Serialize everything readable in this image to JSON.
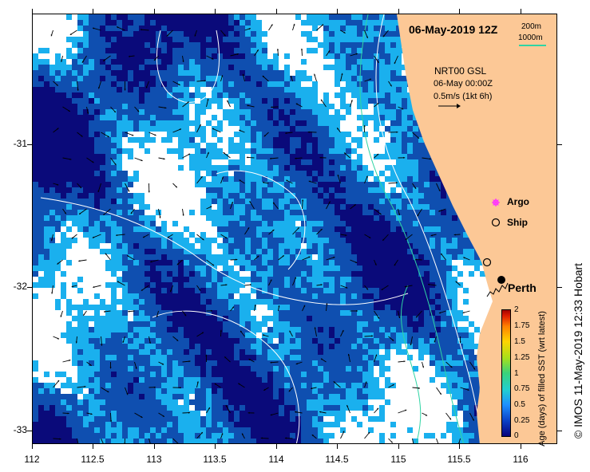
{
  "map": {
    "date_title": "06-May-2019 12Z",
    "bathymetry_legend": {
      "contour_200": "200m",
      "contour_1000": "1000m",
      "contour_1000_color": "#2fd4a4"
    },
    "current_legend": {
      "source": "NRT00 GSL",
      "time": "06-May 00:00Z",
      "scale": "0.5m/s (1kt 6h)"
    },
    "markers": [
      {
        "label": "Argo",
        "symbol": "magenta-asterisk",
        "color": "#ff33ff"
      },
      {
        "label": "Ship",
        "symbol": "open-circle",
        "color": "#000000"
      }
    ],
    "city": {
      "name": "Perth",
      "lon": 115.86,
      "lat": -31.95
    },
    "x_ticks": [
      "112",
      "112.5",
      "113",
      "113.5",
      "114",
      "114.5",
      "115",
      "115.5",
      "116"
    ],
    "y_ticks": [
      "-31",
      "-32",
      "-33"
    ],
    "lon_range": [
      112,
      116.3
    ],
    "lat_range": [
      -33.05,
      -30.05
    ],
    "colorbar": {
      "title": "Age (days) of filled SST (wrt latest)",
      "labels": [
        "2",
        "1.75",
        "1.5",
        "1.25",
        "1",
        "0.75",
        "0.5",
        "0.25",
        "0"
      ],
      "colors": [
        "#08007a",
        "#0a3fc4",
        "#1e90ff",
        "#22d0d0",
        "#3ad27a",
        "#a8e01a",
        "#ffd400",
        "#ff8000",
        "#e02000",
        "#a00000"
      ]
    },
    "ocean_palette": {
      "dark": "#0a0a7a",
      "mid": "#0f4fb0",
      "light": "#1ab0ee",
      "no_data": "#ffffff",
      "land": "#fcc896"
    },
    "credit": "© IMOS 11-May-2019 12:33 Hobart"
  }
}
